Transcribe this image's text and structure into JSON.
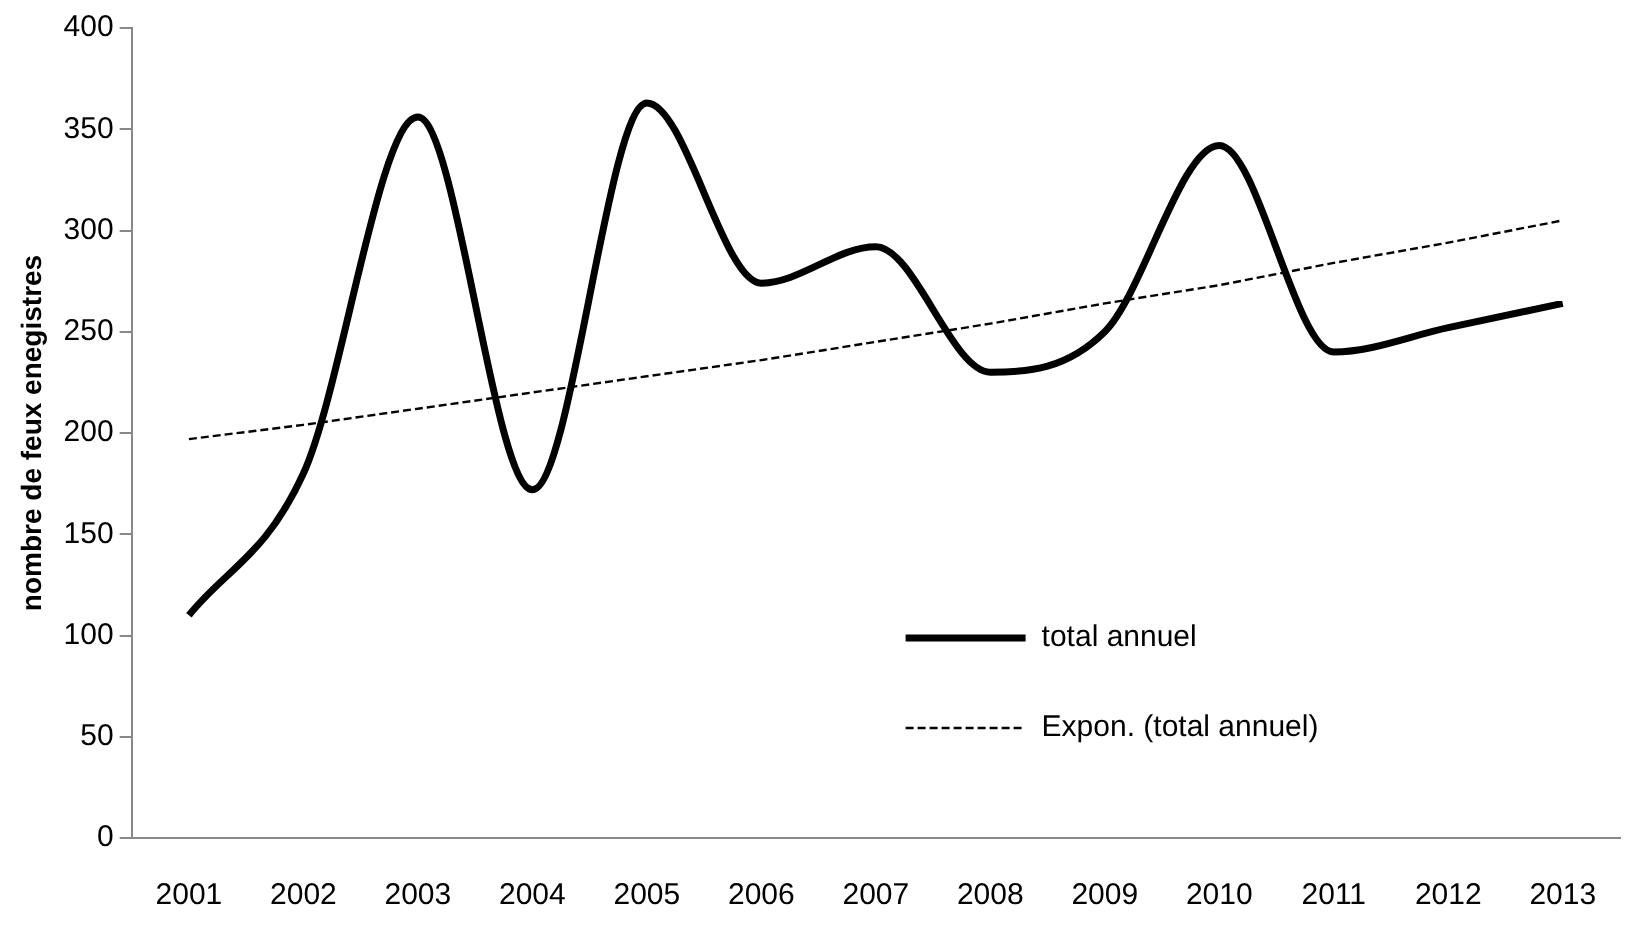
{
  "chart_data": {
    "type": "line",
    "ylabel": "nombre de feux enegistres",
    "categories": [
      "2001",
      "2002",
      "2003",
      "2004",
      "2005",
      "2006",
      "2007",
      "2008",
      "2009",
      "2010",
      "2011",
      "2012",
      "2013"
    ],
    "series": [
      {
        "name": "total annuel",
        "color": "#000000",
        "line_style": "solid",
        "values": [
          110,
          180,
          356,
          172,
          363,
          274,
          292,
          230,
          250,
          342,
          240,
          252,
          264
        ]
      },
      {
        "name": "Expon. (total annuel)",
        "color": "#000000",
        "line_style": "dashed",
        "values": [
          197,
          204,
          212,
          220,
          228,
          236,
          245,
          254,
          264,
          273,
          284,
          294,
          305
        ]
      }
    ],
    "ylim": [
      0,
      400
    ],
    "yticks": [
      0,
      50,
      100,
      150,
      200,
      250,
      300,
      350,
      400
    ],
    "grid": false,
    "legend": "bottom",
    "marker": "none"
  }
}
